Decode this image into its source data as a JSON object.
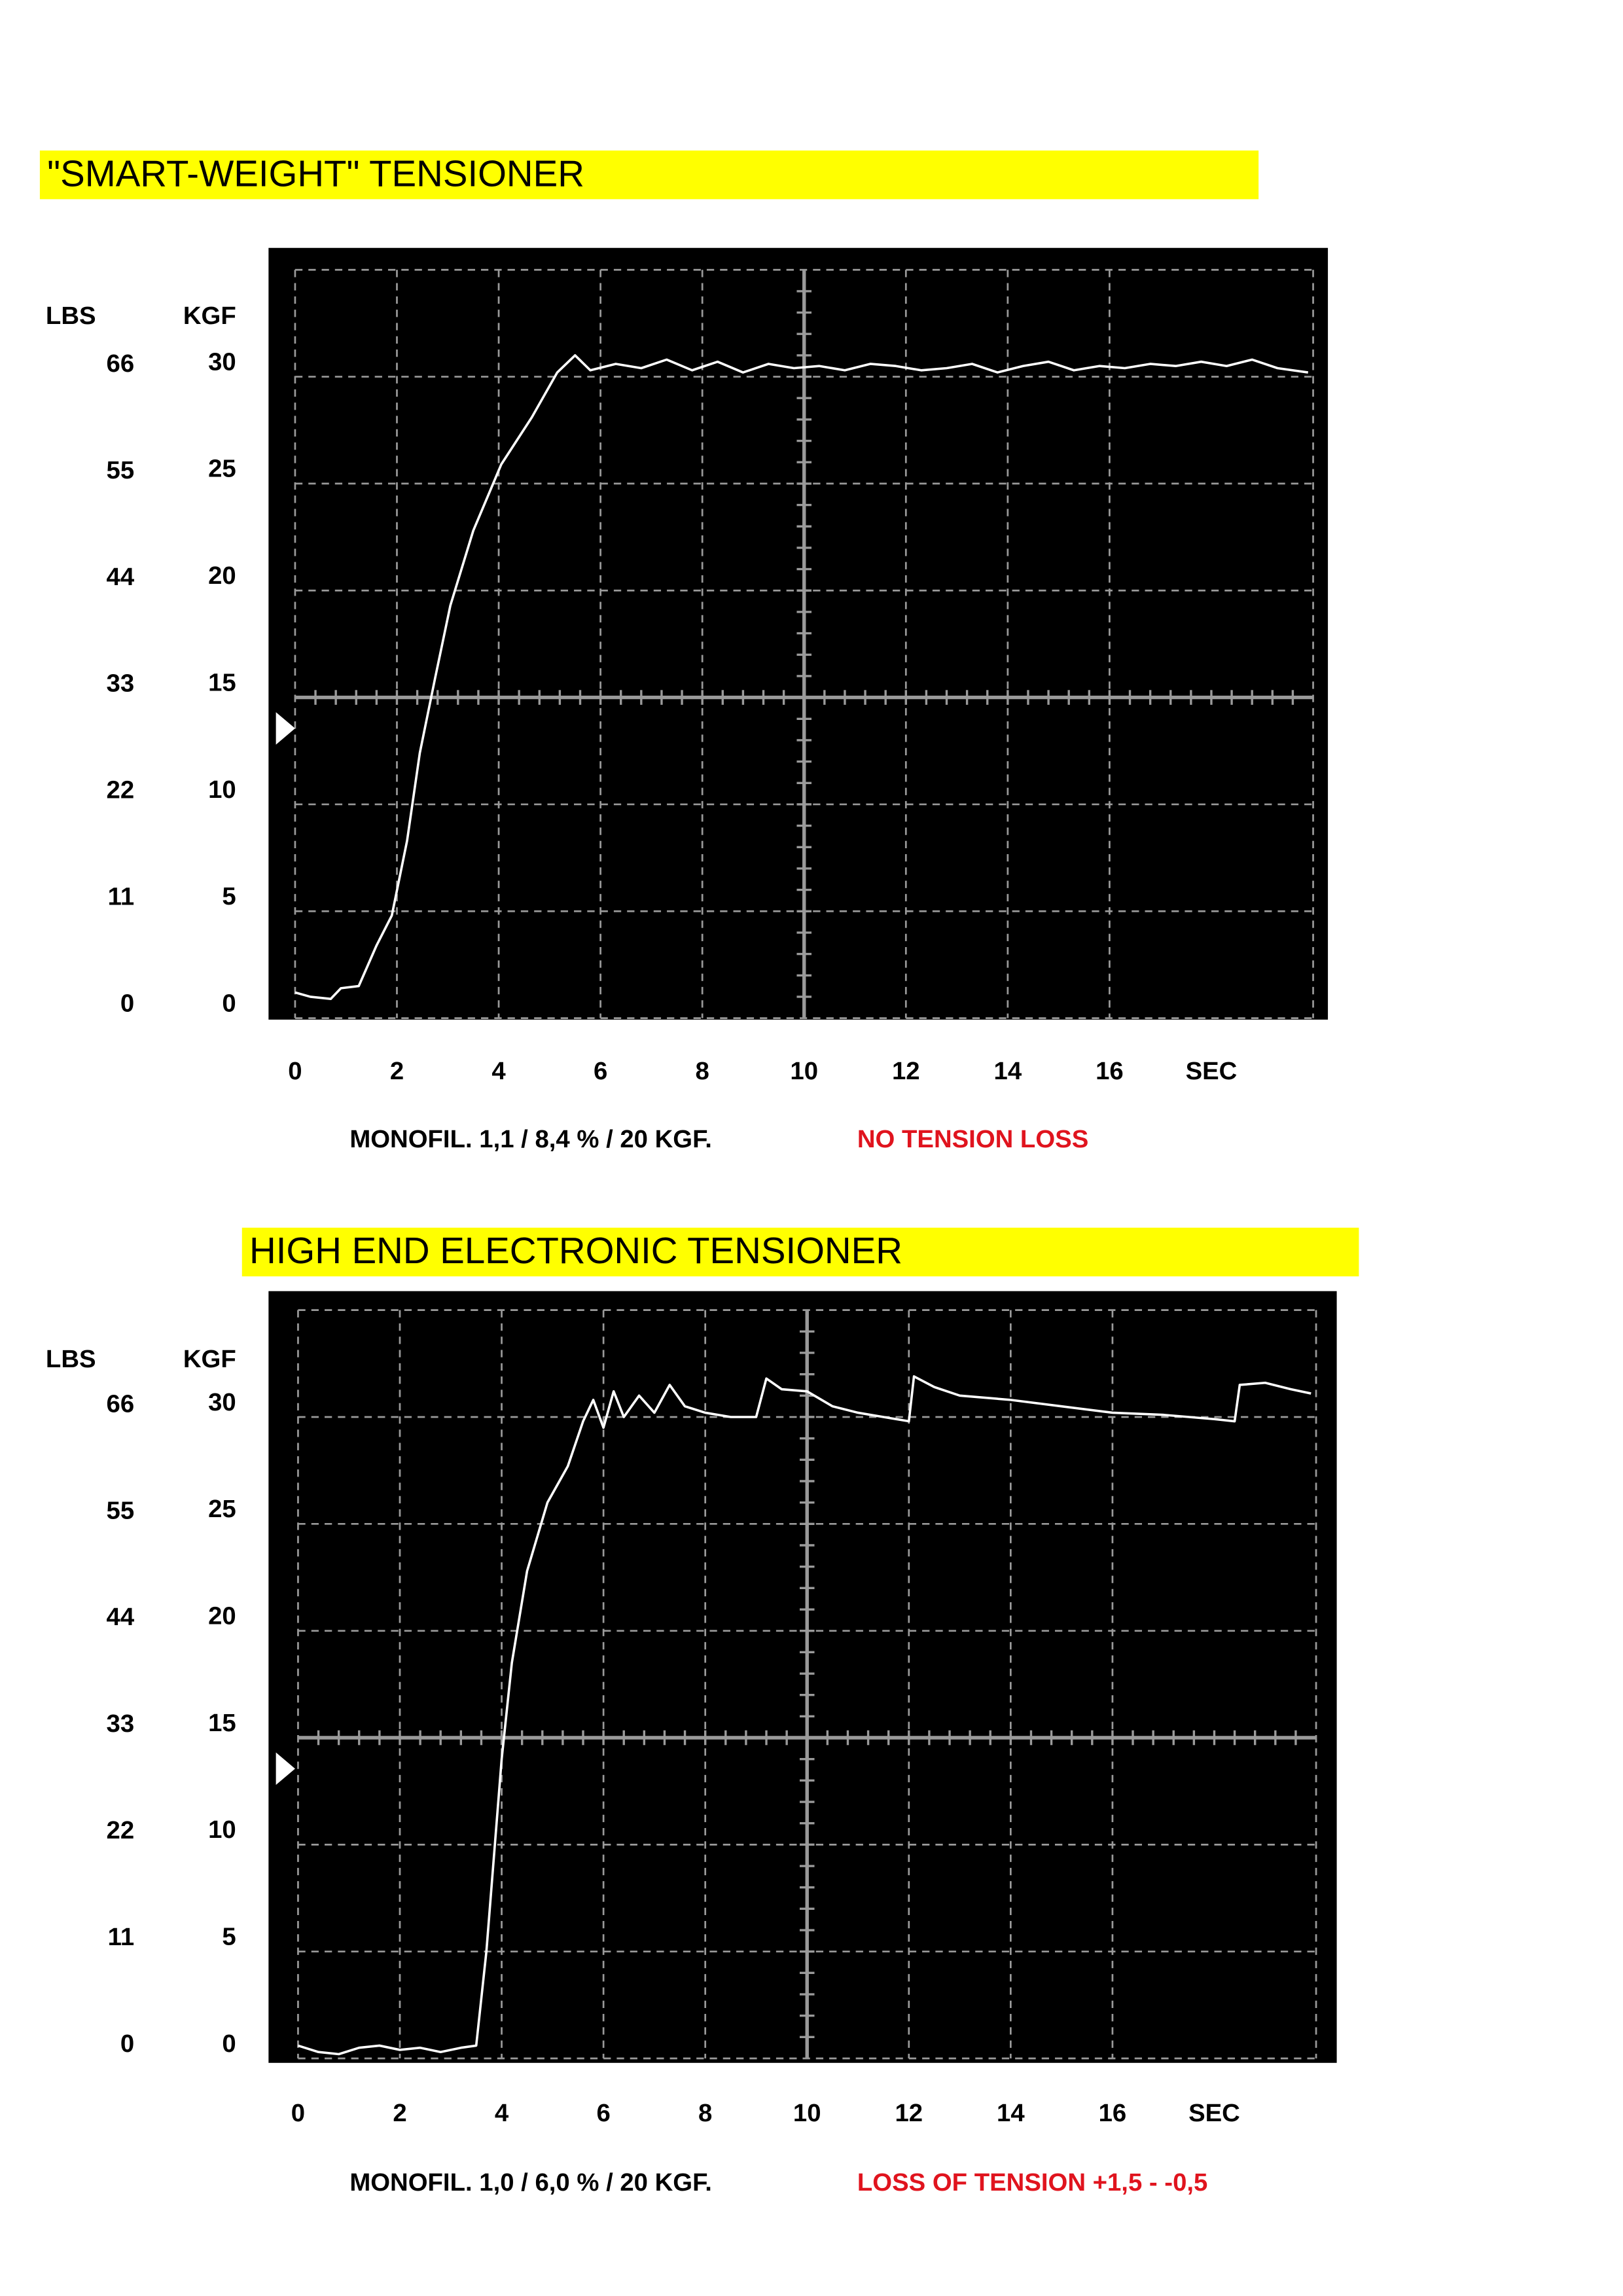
{
  "chart_data": [
    {
      "type": "line",
      "title": "\"SMART-WEIGHT\" TENSIONER",
      "y_label": "KGF",
      "y2_label": "LBS",
      "x_label": "SEC",
      "caption": "MONOFIL. 1,1 / 8,4 % / 20 KGF.",
      "note": "NO TENSION LOSS",
      "xlim": [
        0,
        20
      ],
      "xticks": [
        0,
        2,
        4,
        6,
        8,
        10,
        12,
        14,
        16
      ],
      "ylim": [
        0,
        35
      ],
      "yticks": [
        0,
        5,
        10,
        15,
        20,
        25,
        30
      ],
      "y2lim": [
        0,
        77.2
      ],
      "y2ticks": [
        0,
        11,
        22,
        33,
        44,
        55,
        66
      ],
      "grid": true,
      "color": "#ffffff",
      "x": [
        0,
        0.3,
        0.7,
        0.9,
        1.25,
        1.6,
        1.9,
        2.2,
        2.45,
        2.75,
        3.05,
        3.5,
        4.05,
        4.65,
        5.15,
        5.5,
        5.8,
        6.3,
        6.8,
        7.3,
        7.8,
        8.3,
        8.8,
        9.3,
        9.8,
        10.3,
        10.8,
        11.3,
        11.8,
        12.3,
        12.8,
        13.3,
        13.8,
        14.3,
        14.8,
        15.3,
        15.8,
        16.3,
        16.8,
        17.3,
        17.8,
        18.3,
        18.8,
        19.3,
        19.9
      ],
      "values": [
        1.2,
        1.0,
        0.9,
        1.4,
        1.5,
        3.4,
        4.8,
        8.3,
        12.4,
        15.9,
        19.3,
        22.8,
        25.9,
        28.1,
        30.2,
        31.0,
        30.3,
        30.6,
        30.4,
        30.8,
        30.3,
        30.7,
        30.2,
        30.6,
        30.4,
        30.5,
        30.3,
        30.6,
        30.5,
        30.3,
        30.4,
        30.6,
        30.2,
        30.5,
        30.7,
        30.3,
        30.5,
        30.4,
        30.6,
        30.5,
        30.7,
        30.5,
        30.8,
        30.4,
        30.2
      ]
    },
    {
      "type": "line",
      "title": "HIGH END ELECTRONIC TENSIONER",
      "y_label": "KGF",
      "y2_label": "LBS",
      "x_label": "SEC",
      "caption": "MONOFIL. 1,0 / 6,0 % / 20 KGF.",
      "note": "LOSS OF TENSION +1,5  -  -0,5",
      "xlim": [
        0,
        20
      ],
      "xticks": [
        0,
        2,
        4,
        6,
        8,
        10,
        12,
        14,
        16
      ],
      "ylim": [
        0,
        35
      ],
      "yticks": [
        0,
        5,
        10,
        15,
        20,
        25,
        30
      ],
      "y2lim": [
        0,
        77.2
      ],
      "y2ticks": [
        0,
        11,
        22,
        33,
        44,
        55,
        66
      ],
      "grid": true,
      "color": "#ffffff",
      "x": [
        0,
        0.4,
        0.8,
        1.2,
        1.6,
        2.0,
        2.4,
        2.8,
        3.2,
        3.5,
        3.7,
        3.9,
        4.0,
        4.2,
        4.5,
        4.9,
        5.3,
        5.6,
        5.8,
        6.0,
        6.2,
        6.4,
        6.7,
        7.0,
        7.3,
        7.6,
        8.0,
        8.5,
        9.0,
        9.2,
        9.5,
        10.0,
        10.5,
        11.0,
        11.5,
        12.0,
        12.1,
        12.5,
        13.0,
        14.0,
        15.0,
        16.0,
        17.0,
        18.0,
        18.4,
        18.5,
        19.0,
        19.5,
        19.9
      ],
      "values": [
        0.6,
        0.3,
        0.2,
        0.5,
        0.6,
        0.4,
        0.5,
        0.3,
        0.5,
        0.6,
        5.0,
        11.0,
        14.0,
        18.5,
        22.8,
        26.0,
        27.7,
        29.8,
        30.8,
        29.5,
        31.2,
        30.0,
        31.0,
        30.2,
        31.5,
        30.5,
        30.2,
        30.0,
        30.0,
        31.8,
        31.3,
        31.2,
        30.5,
        30.2,
        30.0,
        29.8,
        31.9,
        31.4,
        31.0,
        30.8,
        30.5,
        30.2,
        30.1,
        29.9,
        29.8,
        31.5,
        31.6,
        31.3,
        31.1
      ]
    }
  ]
}
